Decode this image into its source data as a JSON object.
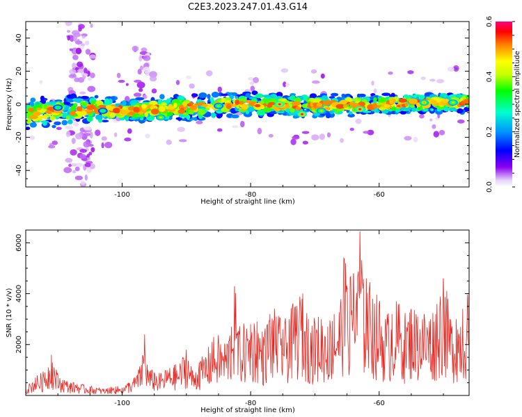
{
  "figure_title": "C2E3.2023.247.01.43.G14",
  "colorbar": {
    "label": "Normalized spectral amplitude",
    "ticks": [
      "0.0",
      "0.2",
      "0.4",
      "0.6"
    ],
    "tick_values": [
      0.0,
      0.2,
      0.4,
      0.6
    ],
    "range": [
      0.0,
      0.6
    ],
    "colormap": [
      "#ffffff",
      "#e8d8f8",
      "#9900ee",
      "#0000ff",
      "#00a0ff",
      "#00ffc0",
      "#00ff00",
      "#c8ff00",
      "#ffff00",
      "#ff8000",
      "#ff0000",
      "#ff0080"
    ]
  },
  "chart_data": [
    {
      "type": "heatmap",
      "xlabel": "Height of straight line (km)",
      "ylabel": "Frequency (Hz)",
      "xlim": [
        -115,
        -46
      ],
      "ylim": [
        -50,
        50
      ],
      "xticks": [
        "-100",
        "-80",
        "-60"
      ],
      "xtick_values": [
        -100,
        -80,
        -60
      ],
      "yticks": [
        "-40",
        "-20",
        "0",
        "20",
        "40"
      ],
      "ytick_values": [
        -40,
        -20,
        0,
        20,
        40
      ],
      "grid": false,
      "band": {
        "description_points_x": [
          -115,
          -105,
          -100,
          -90,
          -80,
          -70,
          -60,
          -50,
          -47
        ],
        "center_hz": [
          -6,
          -3,
          -4,
          -2,
          0,
          -1,
          0,
          1,
          1
        ],
        "halfwidth_hz": [
          9,
          9,
          7,
          8,
          7,
          7,
          6,
          6,
          6
        ]
      },
      "hotspots": [
        {
          "x": -75.5,
          "y": 0,
          "value": 0.6
        },
        {
          "x": -72,
          "y": -6,
          "value": 0.6
        },
        {
          "x": -63,
          "y": -3,
          "value": 0.6
        },
        {
          "x": -53,
          "y": 1,
          "value": 0.5
        },
        {
          "x": -94,
          "y": -8,
          "value": 0.45
        },
        {
          "x": -69,
          "y": -4,
          "value": 0.45
        },
        {
          "x": -48.5,
          "y": 1,
          "value": 0.45
        },
        {
          "x": -110,
          "y": -2,
          "value": 0.35
        },
        {
          "x": -85,
          "y": -1,
          "value": 0.4
        },
        {
          "x": -103,
          "y": -4,
          "value": 0.35
        }
      ]
    },
    {
      "type": "line",
      "xlabel": "Height of straight line (km)",
      "ylabel": "SNR (10 * v/v)",
      "xlim": [
        -115,
        -46
      ],
      "ylim": [
        0,
        6500
      ],
      "xticks": [
        "-100",
        "-80",
        "-60"
      ],
      "xtick_values": [
        -100,
        -80,
        -60
      ],
      "yticks": [
        "2000",
        "4000",
        "6000"
      ],
      "ytick_values": [
        2000,
        4000,
        6000
      ],
      "grid": false,
      "series": [
        {
          "color": "#e8241e",
          "x": [
            -115,
            -113.5,
            -112,
            -111,
            -110,
            -109,
            -108,
            -107,
            -106,
            -105,
            -104,
            -103,
            -102,
            -101,
            -100,
            -99,
            -98,
            -97,
            -96.5,
            -96,
            -95,
            -94,
            -93,
            -92,
            -91,
            -90,
            -89,
            -88,
            -87,
            -86,
            -85,
            -84,
            -83,
            -82.5,
            -82,
            -81,
            -80,
            -79,
            -78,
            -77,
            -76,
            -75,
            -74,
            -73,
            -72,
            -71,
            -70,
            -69,
            -68,
            -67,
            -66,
            -65.5,
            -65,
            -64,
            -63.5,
            -63,
            -62.5,
            -62,
            -61,
            -60,
            -59,
            -58,
            -57,
            -56,
            -55,
            -54,
            -53,
            -52,
            -51,
            -50,
            -49,
            -48,
            -47,
            -46.2
          ],
          "values": [
            300,
            700,
            900,
            1600,
            800,
            600,
            500,
            450,
            400,
            350,
            300,
            250,
            300,
            350,
            300,
            500,
            700,
            1200,
            2400,
            1000,
            900,
            800,
            1000,
            1100,
            1200,
            1800,
            900,
            1300,
            1500,
            2100,
            2200,
            2000,
            2700,
            4300,
            2500,
            2600,
            2800,
            2900,
            2300,
            3200,
            3100,
            2600,
            3000,
            3500,
            3800,
            3000,
            2800,
            3000,
            2700,
            3200,
            3600,
            5400,
            4200,
            4800,
            4000,
            6450,
            4200,
            4600,
            3800,
            3600,
            3000,
            3200,
            3500,
            3000,
            3400,
            3100,
            3200,
            3000,
            3600,
            4600,
            3000,
            3000,
            3400,
            3800
          ]
        }
      ]
    }
  ]
}
